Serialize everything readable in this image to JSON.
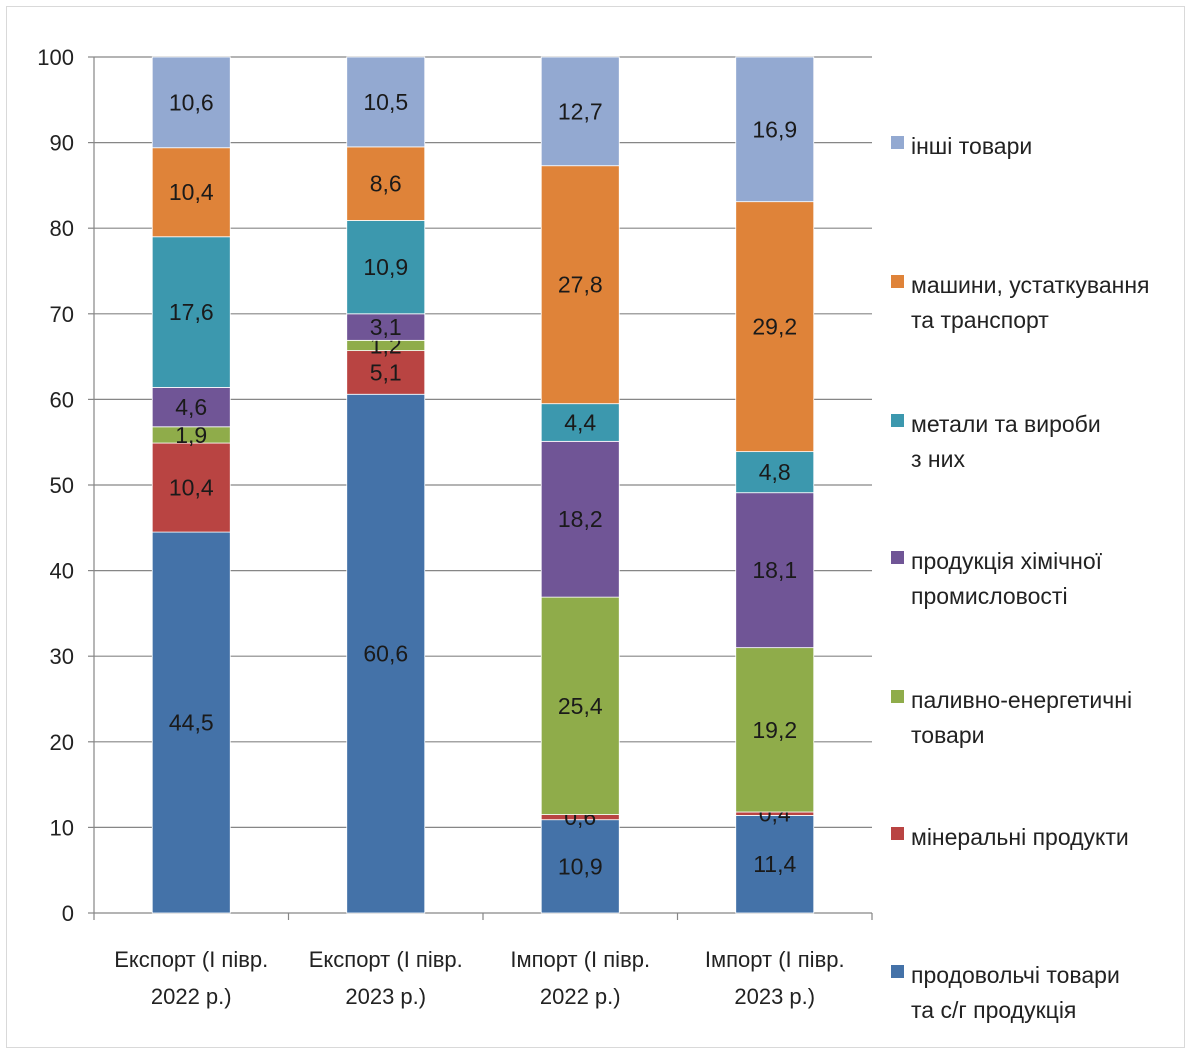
{
  "chart_data": {
    "type": "bar",
    "stacked": true,
    "title": "",
    "xlabel": "",
    "ylabel": "",
    "ylim": [
      0,
      100
    ],
    "yticks": [
      "0",
      "10",
      "20",
      "30",
      "40",
      "50",
      "60",
      "70",
      "80",
      "90",
      "100"
    ],
    "categories": [
      [
        "Експорт (І півр.",
        "2022 р.)"
      ],
      [
        "Експорт (І півр.",
        "2023 р.)"
      ],
      [
        "Імпорт (І півр.",
        "2022 р.)"
      ],
      [
        "Імпорт (І півр.",
        "2023 р.)"
      ]
    ],
    "series": [
      {
        "name": [
          "продовольчі товари",
          "та с/г продукція"
        ],
        "color": "#4472a8",
        "values": [
          44.5,
          60.6,
          10.9,
          11.4
        ],
        "labels": [
          "44,5",
          "60,6",
          "10,9",
          "11,4"
        ]
      },
      {
        "name": [
          "мінеральні продукти"
        ],
        "color": "#b94442",
        "values": [
          10.4,
          5.1,
          0.6,
          0.4
        ],
        "labels": [
          "10,4",
          "5,1",
          "0,6",
          "0,4"
        ]
      },
      {
        "name": [
          "паливно-енергетичні",
          "товари"
        ],
        "color": "#8fac4a",
        "values": [
          1.9,
          1.2,
          25.4,
          19.2
        ],
        "labels": [
          "1,9",
          "1,2",
          "25,4",
          "19,2"
        ]
      },
      {
        "name": [
          "продукція хімічної",
          "промисловості"
        ],
        "color": "#705596",
        "values": [
          4.6,
          3.1,
          18.2,
          18.1
        ],
        "labels": [
          "4,6",
          "3,1",
          "18,2",
          "18,1"
        ]
      },
      {
        "name": [
          "метали та вироби",
          "з них"
        ],
        "color": "#3c98ae",
        "values": [
          17.6,
          10.9,
          4.4,
          4.8
        ],
        "labels": [
          "17,6",
          "10,9",
          "4,4",
          "4,8"
        ]
      },
      {
        "name": [
          "машини, устаткування",
          "та транспорт"
        ],
        "color": "#df8339",
        "values": [
          10.4,
          8.6,
          27.8,
          29.2
        ],
        "labels": [
          "10,4",
          "8,6",
          "27,8",
          "29,2"
        ]
      },
      {
        "name": [
          "інші товари"
        ],
        "color": "#93a9d1",
        "values": [
          10.6,
          10.5,
          12.7,
          16.9
        ],
        "labels": [
          "10,6",
          "10,5",
          "12,7",
          "16,9"
        ]
      }
    ],
    "grid": true,
    "legend_position": "right"
  }
}
